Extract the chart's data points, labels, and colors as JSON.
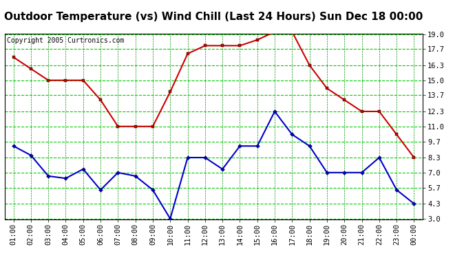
{
  "title": "Outdoor Temperature (vs) Wind Chill (Last 24 Hours) Sun Dec 18 00:00",
  "copyright": "Copyright 2005 Curtronics.com",
  "x_labels": [
    "01:00",
    "02:00",
    "03:00",
    "04:00",
    "05:00",
    "06:00",
    "07:00",
    "08:00",
    "09:00",
    "10:00",
    "11:00",
    "12:00",
    "13:00",
    "14:00",
    "15:00",
    "16:00",
    "17:00",
    "18:00",
    "19:00",
    "20:00",
    "21:00",
    "22:00",
    "23:00",
    "00:00"
  ],
  "red_data": [
    17.0,
    16.0,
    15.0,
    15.0,
    15.0,
    13.3,
    11.0,
    11.0,
    11.0,
    14.0,
    17.3,
    18.0,
    18.0,
    18.0,
    18.5,
    19.2,
    19.2,
    16.3,
    14.3,
    13.3,
    12.3,
    12.3,
    10.3,
    8.3
  ],
  "blue_data": [
    9.3,
    8.5,
    6.7,
    6.5,
    7.3,
    5.5,
    7.0,
    6.7,
    5.5,
    3.0,
    8.3,
    8.3,
    7.3,
    9.3,
    9.3,
    12.3,
    10.3,
    9.3,
    7.0,
    7.0,
    7.0,
    8.3,
    5.5,
    4.3
  ],
  "ylim": [
    3.0,
    19.0
  ],
  "yticks": [
    3.0,
    4.3,
    5.7,
    7.0,
    8.3,
    9.7,
    11.0,
    12.3,
    13.7,
    15.0,
    16.3,
    17.7,
    19.0
  ],
  "red_color": "#cc0000",
  "blue_color": "#0000cc",
  "bg_color": "#ffffff",
  "grid_h_color": "#00cc00",
  "grid_v_color": "#009900",
  "title_fontsize": 11,
  "copyright_fontsize": 7,
  "tick_fontsize": 7.5
}
